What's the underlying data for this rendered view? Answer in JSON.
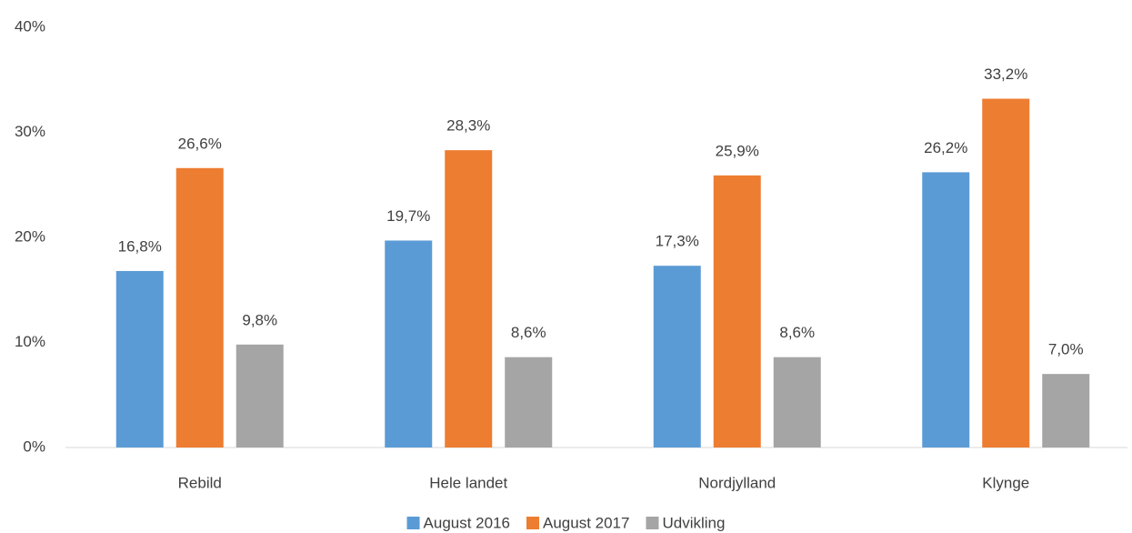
{
  "chart_data": {
    "type": "bar",
    "categories": [
      "Rebild",
      "Hele landet",
      "Nordjylland",
      "Klynge"
    ],
    "series": [
      {
        "name": "August 2016",
        "color": "#5b9bd5",
        "values": [
          16.8,
          19.7,
          17.3,
          26.2
        ],
        "value_labels": [
          "16,8%",
          "19,7%",
          "17,3%",
          "26,2%"
        ]
      },
      {
        "name": "August 2017",
        "color": "#ed7d31",
        "values": [
          26.6,
          28.3,
          25.9,
          33.2
        ],
        "value_labels": [
          "26,6%",
          "28,3%",
          "25,9%",
          "33,2%"
        ]
      },
      {
        "name": "Udvikling",
        "color": "#a5a5a5",
        "values": [
          9.8,
          8.6,
          8.6,
          7.0
        ],
        "value_labels": [
          "9,8%",
          "8,6%",
          "8,6%",
          "7,0%"
        ]
      }
    ],
    "ylim": [
      0,
      40
    ],
    "yticks": [
      {
        "value": 0,
        "label": "0%"
      },
      {
        "value": 10,
        "label": "10%"
      },
      {
        "value": 20,
        "label": "20%"
      },
      {
        "value": 30,
        "label": "30%"
      },
      {
        "value": 40,
        "label": "40%"
      }
    ],
    "grid": false,
    "legend": "bottom"
  }
}
